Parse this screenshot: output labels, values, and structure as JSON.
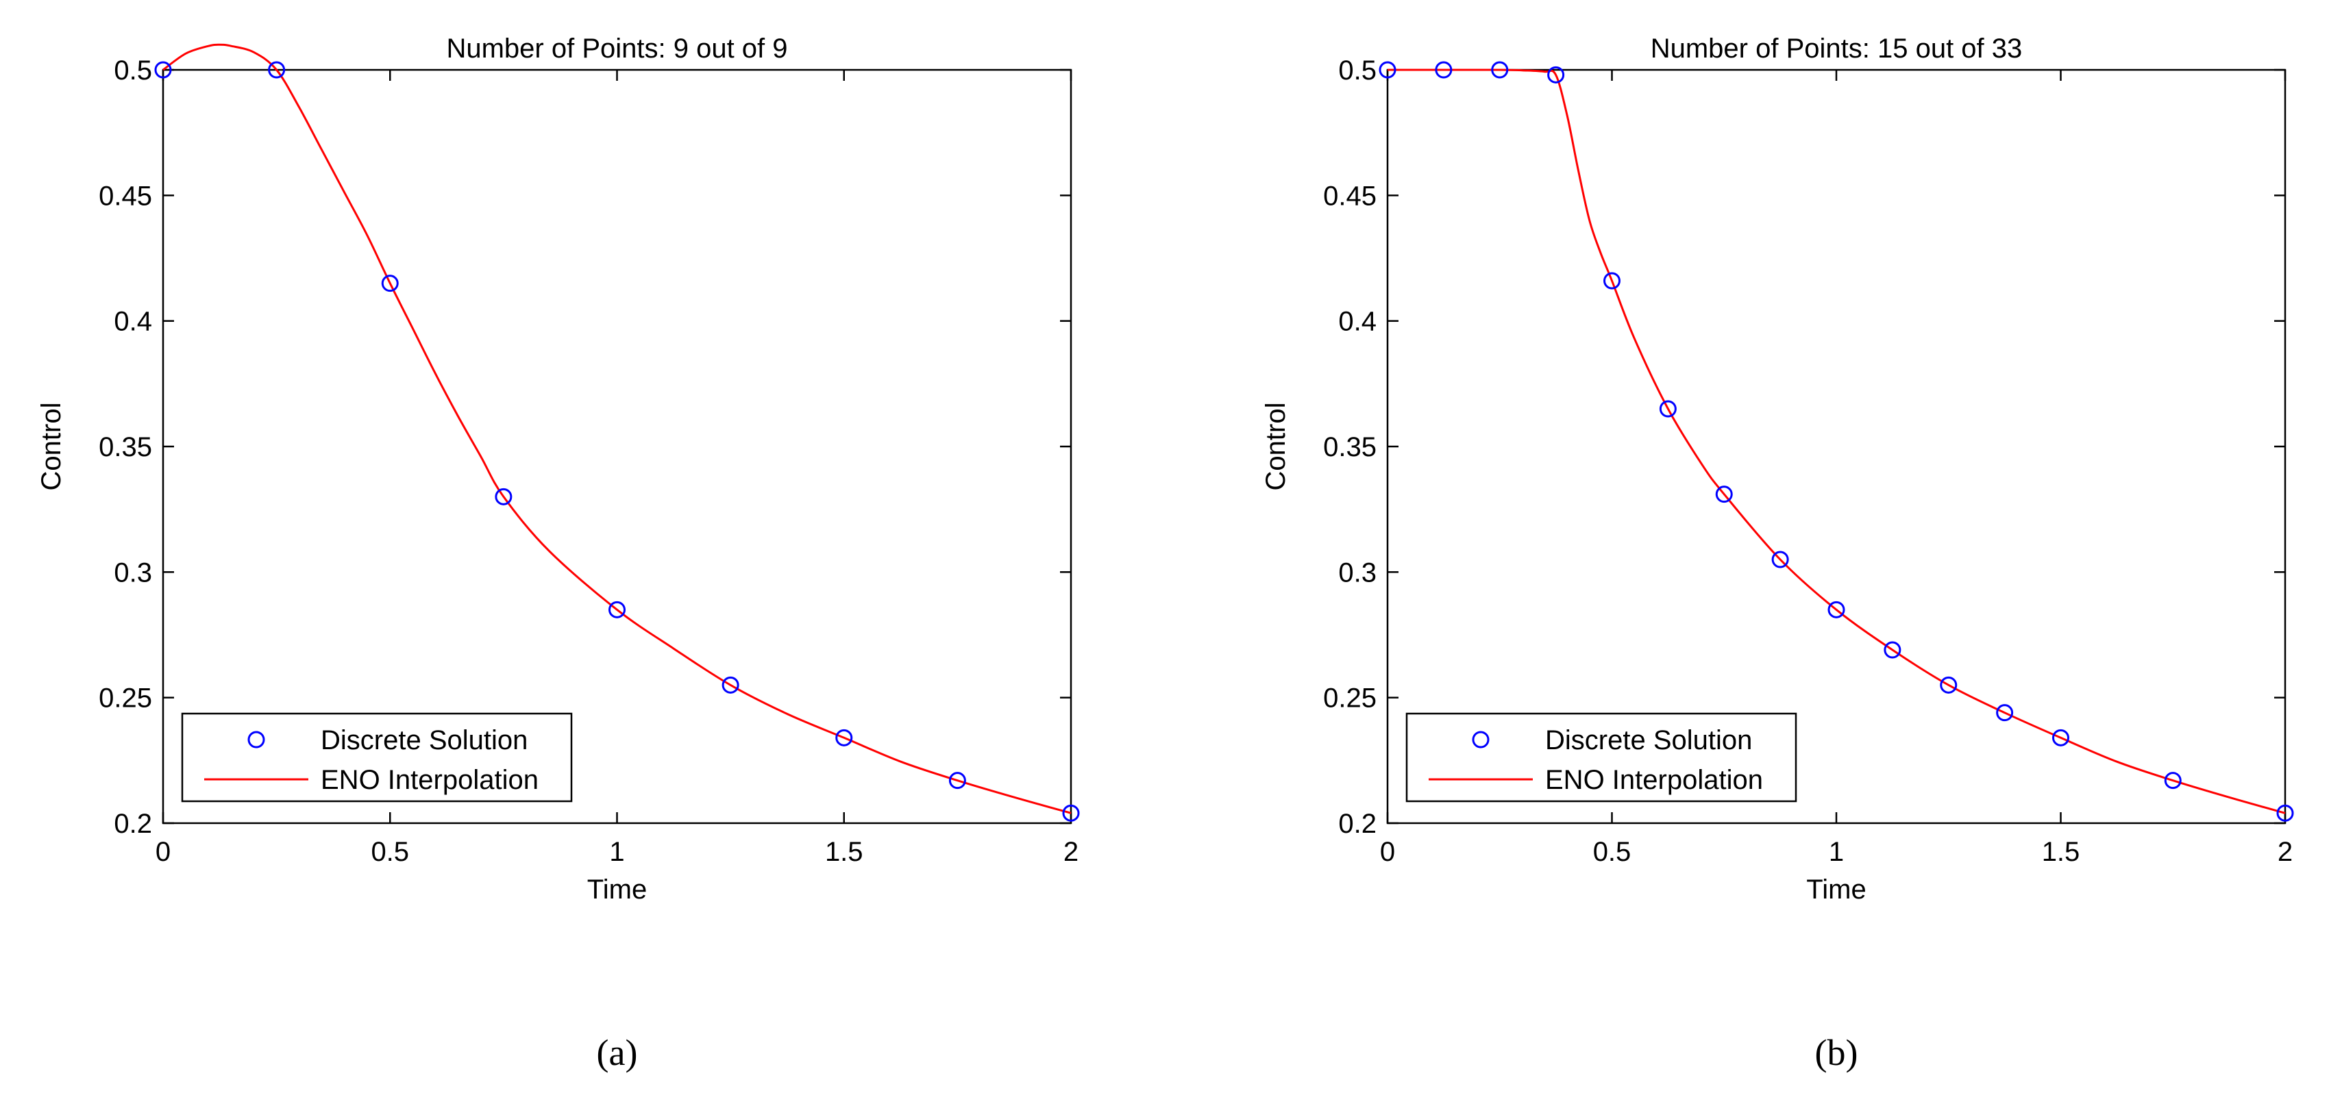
{
  "chart_data": [
    {
      "type": "line",
      "panel_label": "a",
      "title": "Number of Points: 9 out of 9",
      "xlabel": "Time",
      "ylabel": "Control",
      "xlim": [
        0,
        2
      ],
      "ylim": [
        0.2,
        0.5
      ],
      "xticks": [
        0,
        0.5,
        1,
        1.5,
        2
      ],
      "xtick_labels": [
        "0",
        "0.5",
        "1",
        "1.5",
        "2"
      ],
      "yticks": [
        0.2,
        0.25,
        0.3,
        0.35,
        0.4,
        0.45,
        0.5
      ],
      "ytick_labels": [
        "0.2",
        "0.25",
        "0.3",
        "0.35",
        "0.4",
        "0.45",
        "0.5"
      ],
      "grid": false,
      "legend_position": "bottom-left",
      "series": [
        {
          "name": "Discrete Solution",
          "style": "markers",
          "color": "#0000ff",
          "x": [
            0,
            0.25,
            0.5,
            0.75,
            1.0,
            1.25,
            1.5,
            1.75,
            2.0
          ],
          "y": [
            0.5,
            0.5,
            0.415,
            0.33,
            0.285,
            0.255,
            0.234,
            0.217,
            0.204
          ]
        },
        {
          "name": "ENO Interpolation",
          "style": "line",
          "color": "#ff0000",
          "x": [
            0,
            0.05,
            0.1,
            0.125,
            0.15,
            0.2,
            0.25,
            0.3,
            0.35,
            0.4,
            0.45,
            0.5,
            0.55,
            0.6,
            0.65,
            0.7,
            0.75,
            0.85,
            1.0,
            1.125,
            1.25,
            1.375,
            1.5,
            1.625,
            1.75,
            1.875,
            2.0
          ],
          "y": [
            0.5,
            0.5065,
            0.5095,
            0.51,
            0.5095,
            0.507,
            0.5,
            0.485,
            0.468,
            0.451,
            0.434,
            0.415,
            0.397,
            0.379,
            0.362,
            0.346,
            0.33,
            0.3085,
            0.285,
            0.2695,
            0.255,
            0.2435,
            0.234,
            0.2245,
            0.217,
            0.2103,
            0.204
          ]
        }
      ]
    },
    {
      "type": "line",
      "panel_label": "b",
      "title": "Number of Points: 15 out of 33",
      "xlabel": "Time",
      "ylabel": "Control",
      "xlim": [
        0,
        2
      ],
      "ylim": [
        0.2,
        0.5
      ],
      "xticks": [
        0,
        0.5,
        1,
        1.5,
        2
      ],
      "xtick_labels": [
        "0",
        "0.5",
        "1",
        "1.5",
        "2"
      ],
      "yticks": [
        0.2,
        0.25,
        0.3,
        0.35,
        0.4,
        0.45,
        0.5
      ],
      "ytick_labels": [
        "0.2",
        "0.25",
        "0.3",
        "0.35",
        "0.4",
        "0.45",
        "0.5"
      ],
      "grid": false,
      "legend_position": "bottom-left",
      "series": [
        {
          "name": "Discrete Solution",
          "style": "markers",
          "color": "#0000ff",
          "x": [
            0,
            0.125,
            0.25,
            0.375,
            0.5,
            0.625,
            0.75,
            0.875,
            1.0,
            1.125,
            1.25,
            1.375,
            1.5,
            1.75,
            2.0
          ],
          "y": [
            0.5,
            0.5,
            0.5,
            0.498,
            0.416,
            0.365,
            0.331,
            0.305,
            0.285,
            0.269,
            0.255,
            0.244,
            0.234,
            0.217,
            0.204
          ]
        },
        {
          "name": "ENO Interpolation",
          "style": "line",
          "color": "#ff0000",
          "x": [
            0,
            0.125,
            0.25,
            0.3,
            0.35,
            0.375,
            0.4,
            0.425,
            0.45,
            0.475,
            0.5,
            0.55,
            0.625,
            0.7,
            0.75,
            0.875,
            1.0,
            1.125,
            1.25,
            1.375,
            1.5,
            1.625,
            1.75,
            1.875,
            2.0
          ],
          "y": [
            0.5,
            0.5,
            0.5,
            0.4998,
            0.4993,
            0.498,
            0.482,
            0.46,
            0.44,
            0.427,
            0.416,
            0.393,
            0.365,
            0.343,
            0.331,
            0.305,
            0.285,
            0.269,
            0.255,
            0.244,
            0.234,
            0.2245,
            0.217,
            0.2103,
            0.204
          ]
        }
      ]
    }
  ],
  "captions": [
    "(a)",
    "(b)"
  ]
}
